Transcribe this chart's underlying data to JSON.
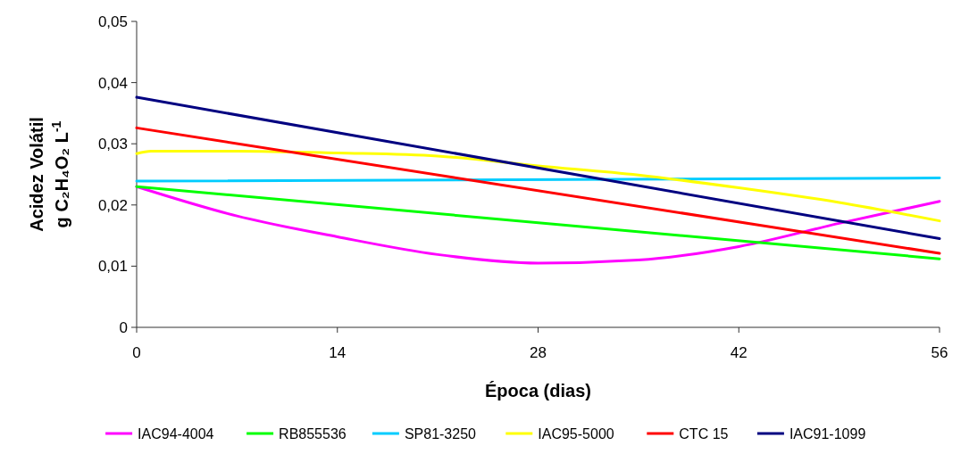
{
  "chart_data": {
    "type": "line",
    "xlabel": "Época (dias)",
    "ylabel": "Acidez Volátil\ng C₂H₄O₂ L$^{-1}$",
    "xlim": [
      0,
      56
    ],
    "xticks": [
      0,
      14,
      28,
      42,
      56
    ],
    "ylim": [
      0,
      0.05
    ],
    "yticks": [
      0,
      {
        "value": 0.01,
        "label": "0,01"
      },
      {
        "value": 0.02,
        "label": "0,02"
      },
      {
        "value": 0.03,
        "label": "0,03"
      },
      {
        "value": 0.04,
        "label": "0,04"
      },
      {
        "value": 0.05,
        "label": "0,05"
      }
    ],
    "grid": false,
    "legend": "bottom",
    "marker": "none",
    "line_style": "solid",
    "series": [
      {
        "name": "IAC94-4004",
        "color": "#ff00ff",
        "x": [
          0,
          7,
          14,
          21,
          28,
          35,
          42,
          49,
          56
        ],
        "values": [
          0.023,
          0.0182,
          0.0148,
          0.0119,
          0.0105,
          0.011,
          0.0132,
          0.017,
          0.0206
        ]
      },
      {
        "name": "RB855536",
        "color": "#00ff00",
        "x": [
          0,
          56
        ],
        "values": [
          0.023,
          0.0112
        ]
      },
      {
        "name": "SP81-3250",
        "color": "#00ccff",
        "x": [
          0,
          56
        ],
        "values": [
          0.0239,
          0.0244
        ]
      },
      {
        "name": "IAC95-5000",
        "color": "#ffff00",
        "x": [
          0,
          1,
          7,
          14,
          21,
          28,
          35,
          42,
          49,
          56
        ],
        "values": [
          0.0284,
          0.0288,
          0.0288,
          0.0285,
          0.028,
          0.0264,
          0.0249,
          0.0228,
          0.0204,
          0.0174
        ]
      },
      {
        "name": "CTC 15",
        "color": "#ff0000",
        "x": [
          0,
          56
        ],
        "values": [
          0.0326,
          0.0121
        ]
      },
      {
        "name": "IAC91-1099",
        "color": "#000080",
        "x": [
          0,
          56
        ],
        "values": [
          0.0376,
          0.0145
        ]
      }
    ]
  }
}
